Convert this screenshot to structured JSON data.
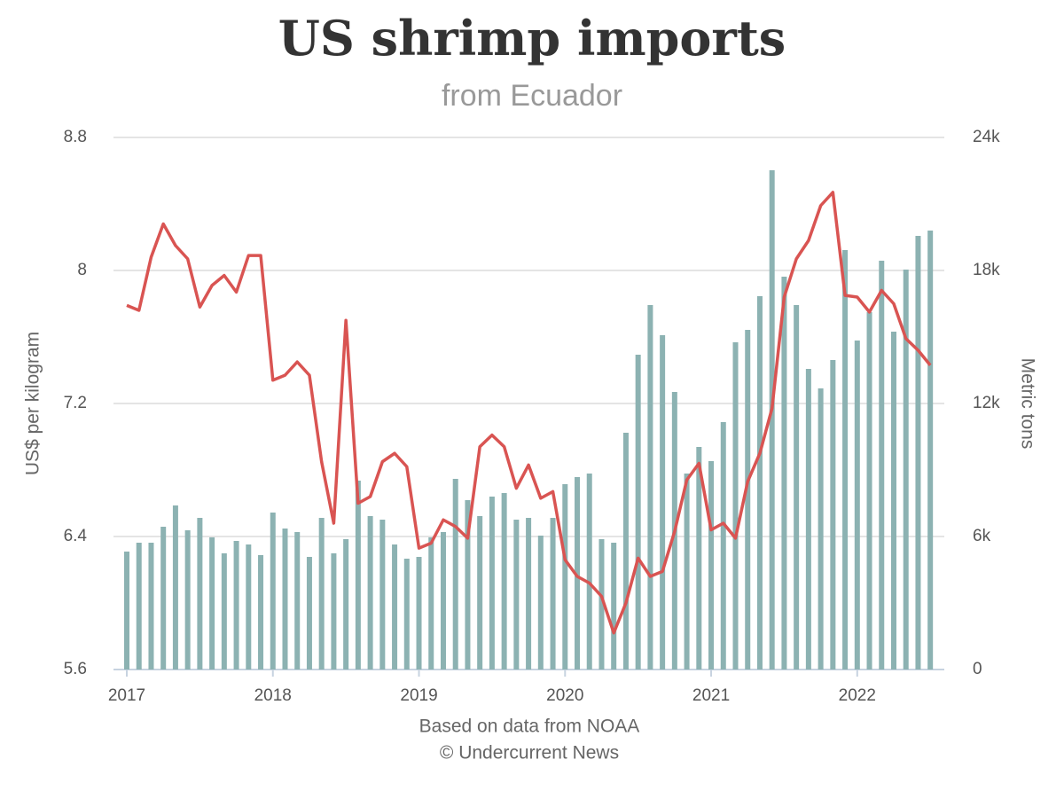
{
  "chart_data": {
    "type": "combo",
    "title": "US shrimp imports",
    "subtitle": "from Ecuador",
    "y_label": "US$ per kilogram",
    "y2_label": "Metric tons",
    "x_label": "Based on data from NOAA",
    "credit": "© Undercurrent News",
    "categories": [
      "2017",
      null,
      null,
      null,
      null,
      null,
      null,
      null,
      null,
      null,
      null,
      null,
      "2018",
      null,
      null,
      null,
      null,
      null,
      null,
      null,
      null,
      null,
      null,
      null,
      "2019",
      null,
      null,
      null,
      null,
      null,
      null,
      null,
      null,
      null,
      null,
      null,
      "2020",
      null,
      null,
      null,
      null,
      null,
      null,
      null,
      null,
      null,
      null,
      null,
      "2021",
      null,
      null,
      null,
      null,
      null,
      null,
      null,
      null,
      null,
      null,
      null,
      "2022",
      null,
      null,
      null,
      null,
      null,
      null
    ],
    "ylim": [
      5.6,
      8.8
    ],
    "yticks": [
      5.6,
      6.4,
      7.2,
      8,
      8.8
    ],
    "y2lim": [
      0,
      24000
    ],
    "y2ticks": [
      0,
      {
        "value": 6000,
        "label": "6k"
      },
      {
        "value": 12000,
        "label": "12k"
      },
      {
        "value": 18000,
        "label": "18k"
      },
      {
        "value": 24000,
        "label": "24k"
      }
    ],
    "grid": true,
    "series": [
      {
        "type": "bar",
        "axis": "y2",
        "color": "#8cb2b2",
        "values": [
          5320,
          5720,
          5720,
          6440,
          7400,
          6280,
          6840,
          5960,
          5240,
          5800,
          5640,
          5160,
          7080,
          6360,
          6200,
          5080,
          6840,
          5240,
          5880,
          8520,
          6920,
          6760,
          5640,
          5000,
          5080,
          5960,
          6200,
          8600,
          7640,
          6920,
          7800,
          7960,
          6760,
          6840,
          6040,
          6840,
          8360,
          8680,
          8840,
          5880,
          5720,
          10680,
          14200,
          16440,
          15080,
          12520,
          8840,
          10040,
          9400,
          11160,
          14760,
          15320,
          16840,
          22520,
          17720,
          16440,
          13560,
          12680,
          13960,
          18920,
          14840,
          16120,
          18440,
          15240,
          18040,
          19560,
          19800
        ]
      },
      {
        "type": "line",
        "color": "#d95452",
        "values": [
          7.79,
          7.76,
          8.08,
          8.28,
          8.15,
          8.07,
          7.78,
          7.91,
          7.97,
          7.87,
          8.09,
          8.09,
          7.34,
          7.37,
          7.45,
          7.37,
          6.85,
          6.48,
          7.7,
          6.6,
          6.64,
          6.85,
          6.9,
          6.82,
          6.33,
          6.36,
          6.5,
          6.46,
          6.39,
          6.94,
          7.01,
          6.94,
          6.69,
          6.83,
          6.63,
          6.67,
          6.26,
          6.16,
          6.12,
          6.04,
          5.82,
          6.0,
          6.27,
          6.16,
          6.19,
          6.43,
          6.74,
          6.84,
          6.44,
          6.48,
          6.39,
          6.73,
          6.9,
          7.17,
          7.84,
          8.07,
          8.18,
          8.39,
          8.47,
          7.85,
          7.84,
          7.75,
          7.88,
          7.8,
          7.59,
          7.52,
          7.43
        ]
      }
    ]
  }
}
